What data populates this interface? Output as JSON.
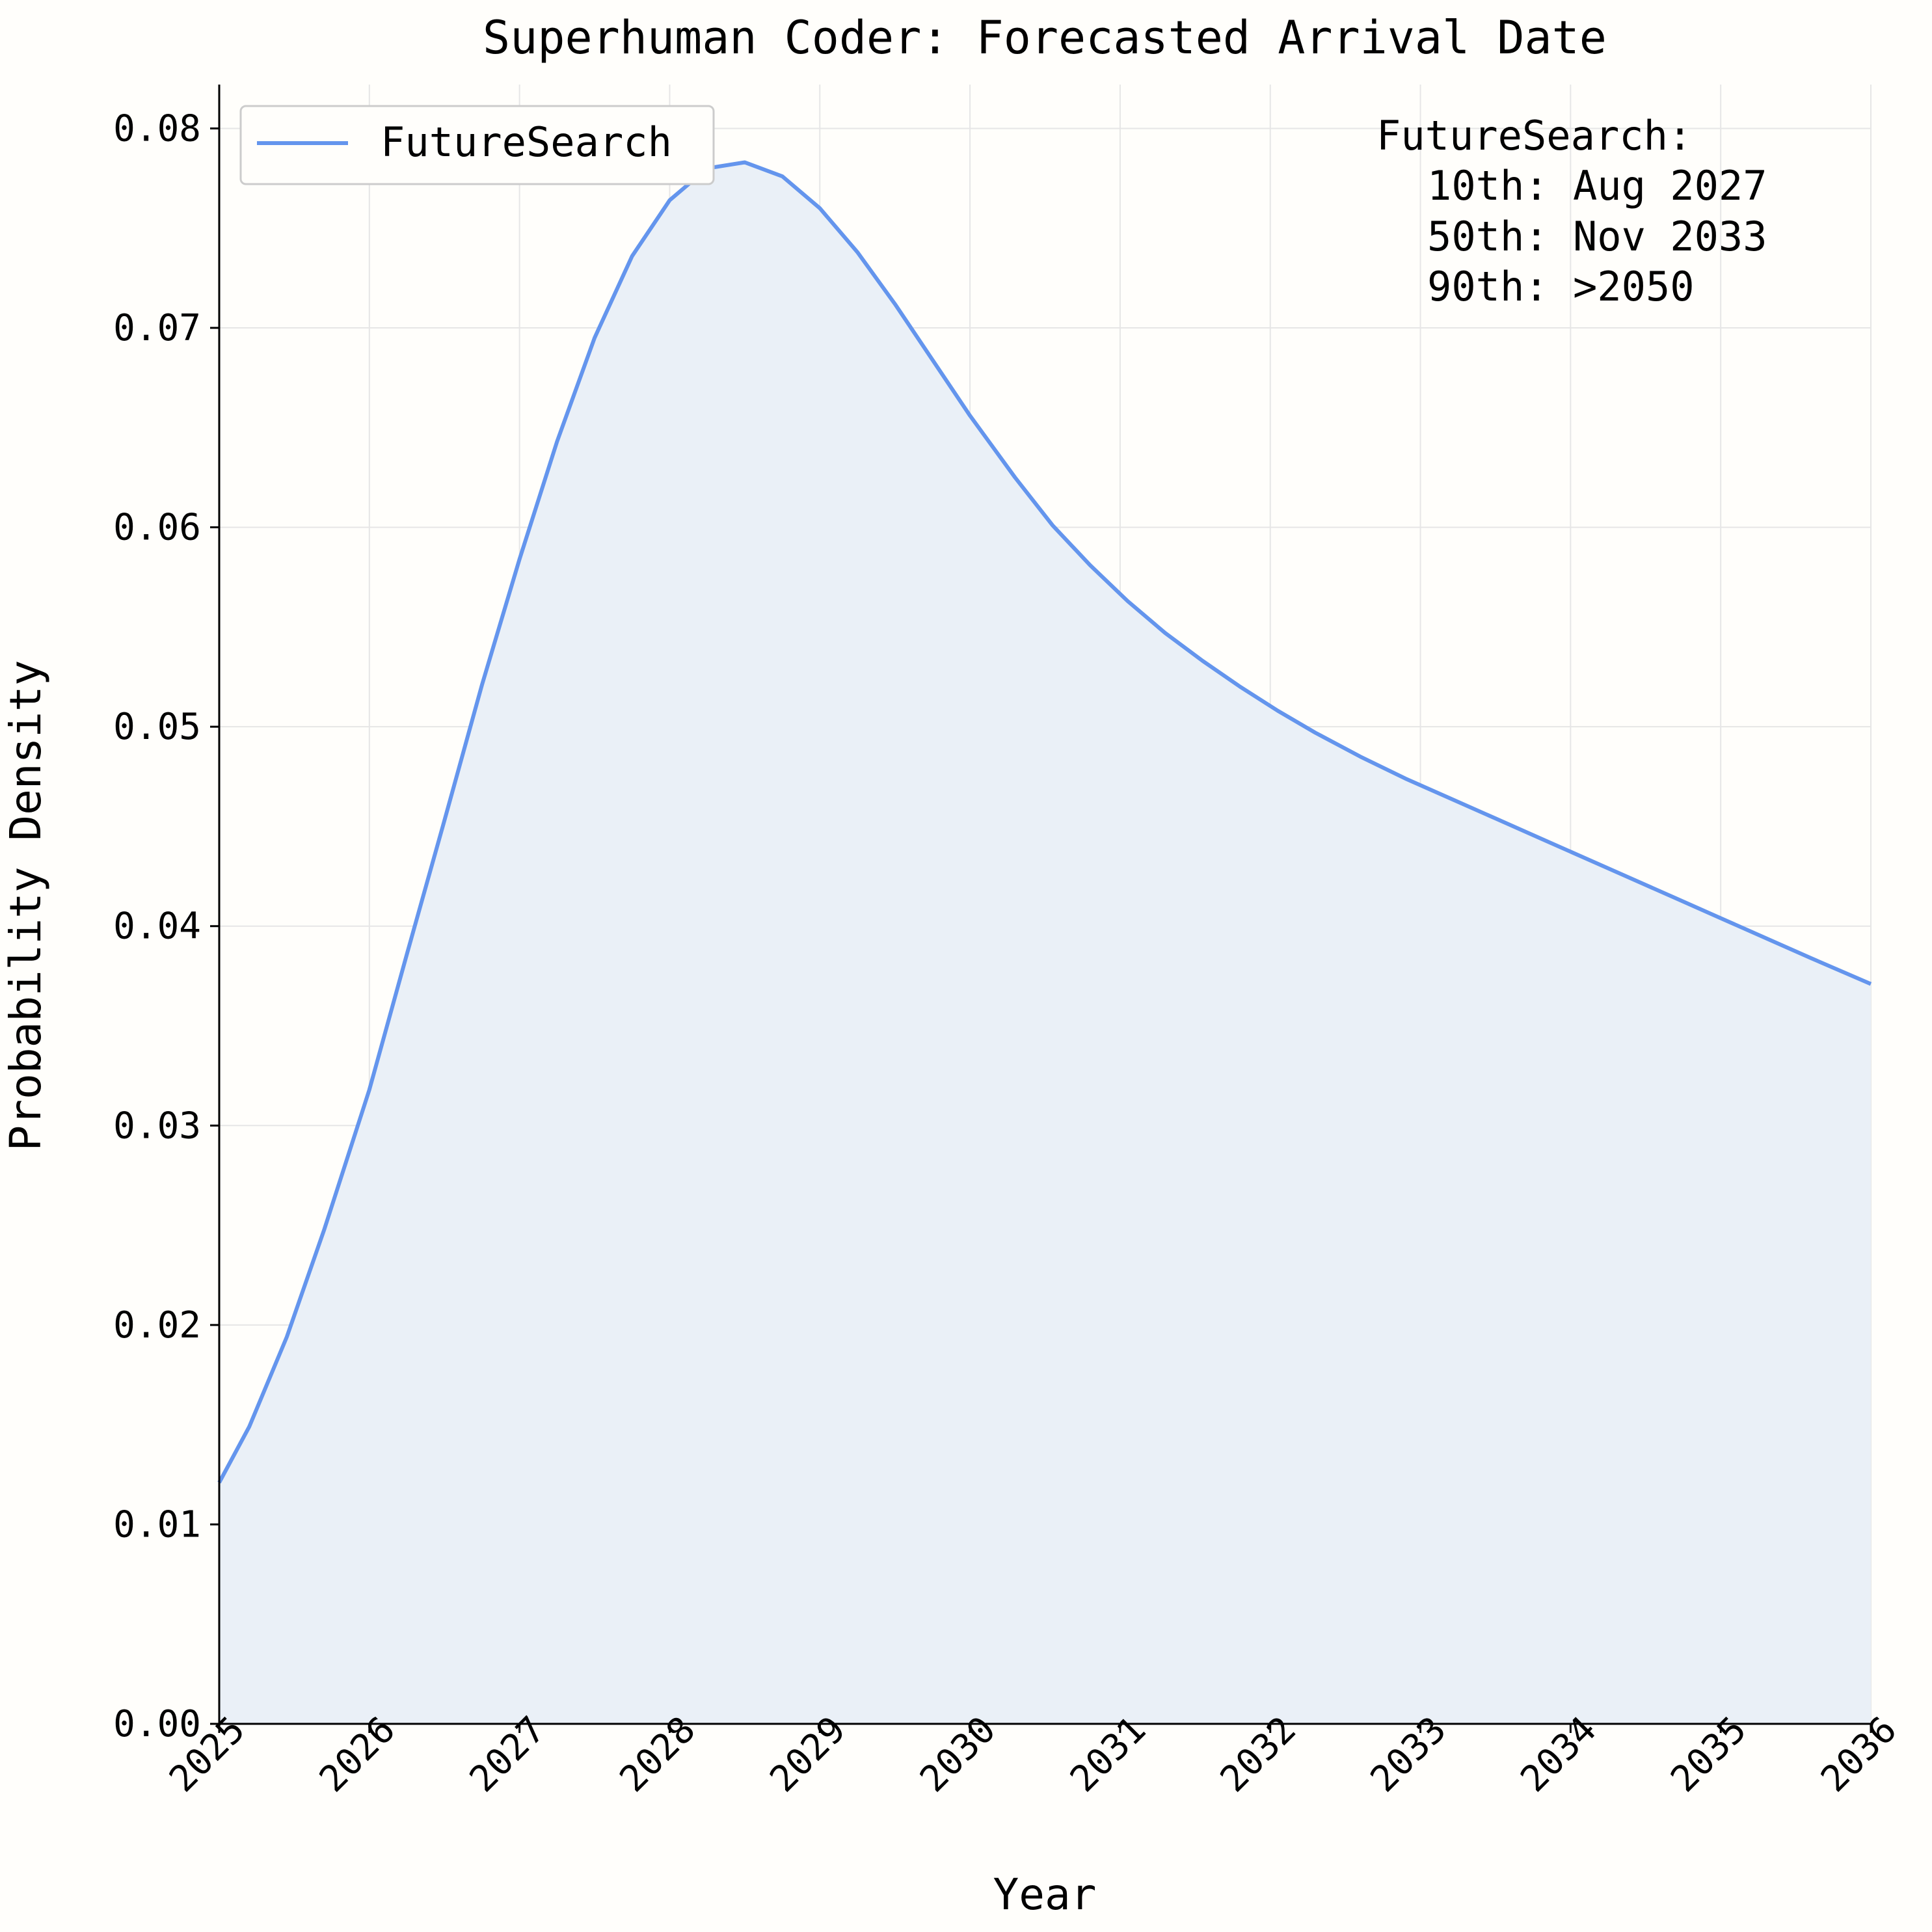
{
  "chart_data": {
    "type": "area",
    "title": "Superhuman Coder: Forecasted Arrival Date",
    "xlabel": "Year",
    "ylabel": "Probability Density",
    "xlim": [
      2025,
      2036
    ],
    "ylim": [
      0,
      0.0822
    ],
    "x_ticks": [
      "2025",
      "2026",
      "2027",
      "2028",
      "2029",
      "2030",
      "2031",
      "2032",
      "2033",
      "2034",
      "2035",
      "2036"
    ],
    "y_ticks": [
      "0.00",
      "0.01",
      "0.02",
      "0.03",
      "0.04",
      "0.05",
      "0.06",
      "0.07",
      "0.08"
    ],
    "grid": true,
    "legend_position": "top-left",
    "series": [
      {
        "name": "FutureSearch",
        "color": "#6495ed",
        "fill_color": "#eaf0f7",
        "x": [
          2025.0,
          2025.2,
          2025.45,
          2025.7,
          2026.0,
          2026.25,
          2026.5,
          2026.75,
          2027.0,
          2027.25,
          2027.5,
          2027.75,
          2028.0,
          2028.25,
          2028.5,
          2028.75,
          2029.0,
          2029.25,
          2029.5,
          2029.75,
          2030.0,
          2030.3,
          2030.55,
          2030.8,
          2031.05,
          2031.3,
          2031.55,
          2031.8,
          2032.05,
          2032.3,
          2032.6,
          2032.9,
          2033.2,
          2033.5,
          2033.8,
          2034.1,
          2034.4,
          2034.7,
          2035.0,
          2035.3,
          2035.6,
          2036.0
        ],
        "y": [
          0.0121,
          0.0149,
          0.0194,
          0.0248,
          0.0318,
          0.0386,
          0.0453,
          0.0521,
          0.0584,
          0.0643,
          0.0695,
          0.0736,
          0.0764,
          0.078,
          0.0783,
          0.0776,
          0.076,
          0.0738,
          0.0712,
          0.0684,
          0.0656,
          0.0625,
          0.0601,
          0.0581,
          0.0563,
          0.0547,
          0.0533,
          0.052,
          0.0508,
          0.0497,
          0.0485,
          0.0474,
          0.0464,
          0.0454,
          0.0444,
          0.0434,
          0.0424,
          0.0414,
          0.0404,
          0.0394,
          0.0384,
          0.0371
        ]
      }
    ],
    "annotation": {
      "title": "FutureSearch:",
      "lines": [
        "10th: Aug 2027",
        "50th: Nov 2033",
        "90th: >2050"
      ]
    }
  }
}
